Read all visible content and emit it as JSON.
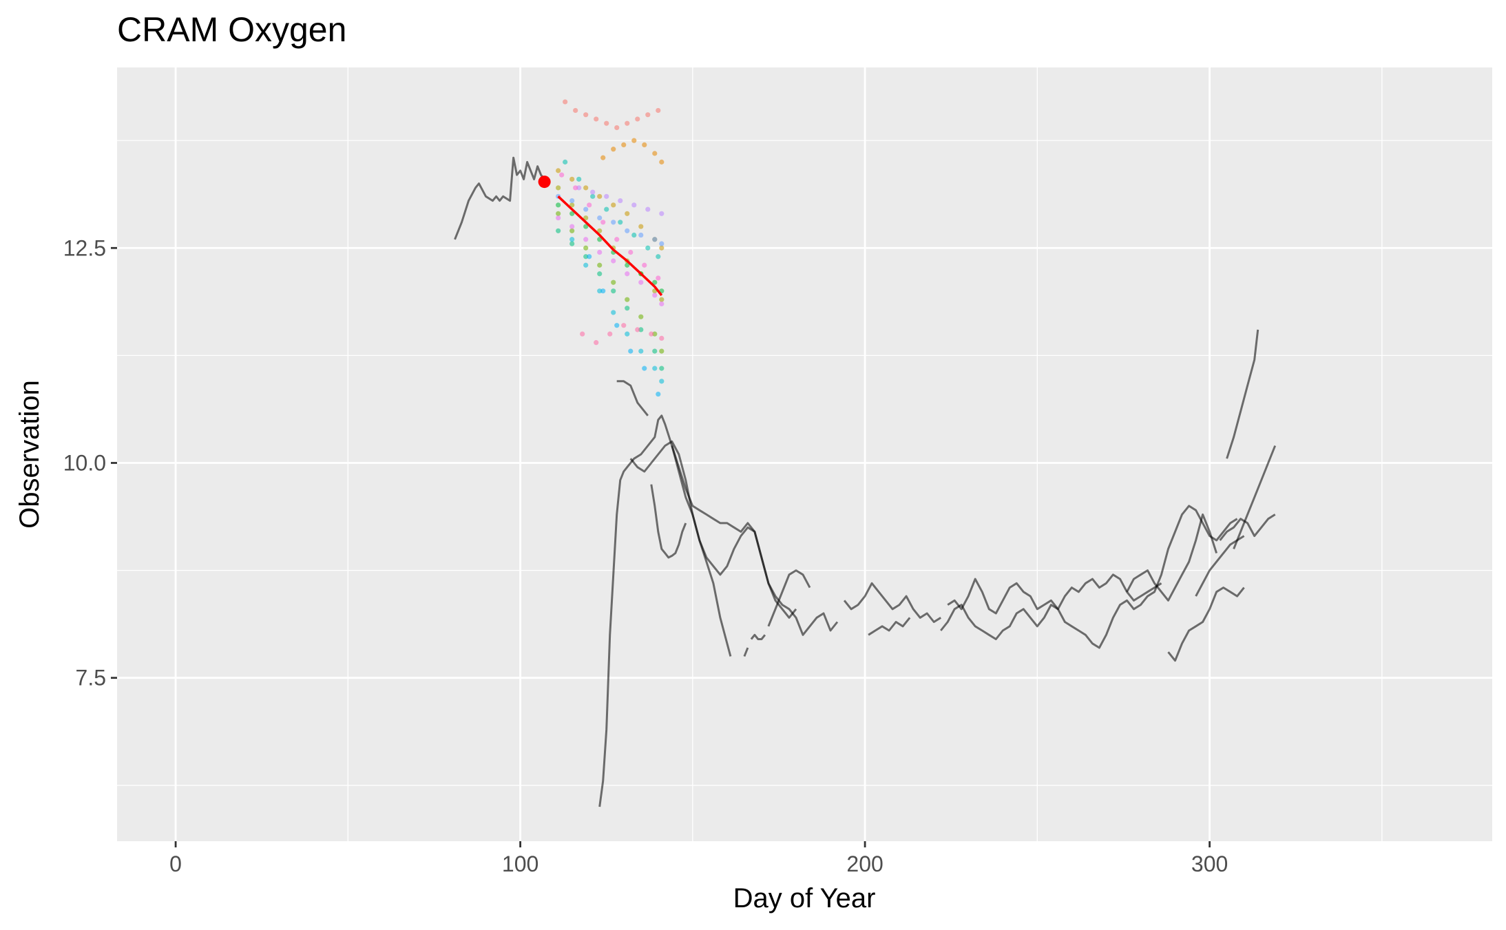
{
  "chart_data": {
    "type": "line",
    "title": "CRAM Oxygen",
    "xlabel": "Day of Year",
    "ylabel": "Observation",
    "xlim": [
      -17,
      382
    ],
    "ylim": [
      5.6,
      14.6
    ],
    "x_ticks": [
      0,
      100,
      200,
      300
    ],
    "y_ticks": [
      7.5,
      10.0,
      12.5
    ],
    "grid": true,
    "background": "#ebebeb",
    "grid_color": "#ffffff",
    "observation_color": "#000000",
    "forecast_mean_color": "#ff0000",
    "forecast_start_color": "#ff0000",
    "forecast_start": {
      "x": 107,
      "y": 13.27
    },
    "forecast_mean": {
      "x": [
        111,
        115,
        119,
        123,
        127,
        131,
        135,
        139,
        141
      ],
      "y": [
        13.1,
        12.95,
        12.8,
        12.65,
        12.48,
        12.35,
        12.2,
        12.05,
        11.95
      ]
    },
    "observed_series": [
      {
        "x": [
          81,
          83,
          85,
          87,
          88,
          90,
          92,
          93,
          94,
          95,
          97,
          98,
          99,
          100,
          101,
          102,
          103,
          104,
          105,
          106,
          107
        ],
        "y": [
          12.6,
          12.8,
          13.05,
          13.2,
          13.25,
          13.1,
          13.05,
          13.1,
          13.05,
          13.1,
          13.05,
          13.55,
          13.35,
          13.4,
          13.3,
          13.5,
          13.4,
          13.3,
          13.45,
          13.35,
          13.3
        ]
      },
      {
        "x": [
          128,
          130,
          132,
          134,
          136,
          137
        ],
        "y": [
          10.95,
          10.95,
          10.9,
          10.7,
          10.6,
          10.55
        ]
      },
      {
        "x": [
          123,
          124,
          125,
          126,
          128,
          129,
          130,
          131,
          133,
          135,
          137,
          139,
          140,
          141,
          142,
          144,
          146,
          148,
          150,
          152,
          154,
          156,
          158,
          160,
          162,
          164,
          166,
          168,
          170,
          172,
          174,
          176,
          178,
          180
        ],
        "y": [
          6.0,
          6.3,
          6.9,
          8.0,
          9.4,
          9.8,
          9.9,
          9.95,
          10.05,
          10.1,
          10.2,
          10.3,
          10.5,
          10.55,
          10.45,
          10.2,
          9.95,
          9.7,
          9.5,
          9.45,
          9.4,
          9.35,
          9.3,
          9.3,
          9.25,
          9.2,
          9.3,
          9.2,
          8.9,
          8.6,
          8.4,
          8.3,
          8.2,
          8.3
        ]
      },
      {
        "x": [
          132,
          134,
          136,
          138,
          140,
          142,
          144,
          146,
          148,
          150,
          152,
          154,
          156,
          158,
          160,
          162,
          164,
          166,
          168,
          170,
          172,
          174,
          176,
          178,
          180,
          182,
          184,
          186,
          188,
          190,
          192
        ],
        "y": [
          10.05,
          9.95,
          9.9,
          10.0,
          10.1,
          10.2,
          10.25,
          10.1,
          9.8,
          9.4,
          9.1,
          8.9,
          8.8,
          8.7,
          8.8,
          9.0,
          9.15,
          9.25,
          9.2,
          8.9,
          8.6,
          8.45,
          8.35,
          8.3,
          8.2,
          8.0,
          8.1,
          8.2,
          8.25,
          8.05,
          8.15
        ]
      },
      {
        "x": [
          138,
          139,
          140,
          141,
          142,
          143,
          144,
          145,
          146,
          147,
          148
        ],
        "y": [
          9.75,
          9.5,
          9.2,
          9.0,
          8.95,
          8.9,
          8.92,
          8.95,
          9.05,
          9.2,
          9.3
        ]
      },
      {
        "x": [
          144,
          146,
          148,
          150,
          152,
          154,
          156,
          157,
          158,
          160,
          161
        ],
        "y": [
          10.2,
          9.9,
          9.6,
          9.4,
          9.1,
          8.85,
          8.6,
          8.4,
          8.2,
          7.9,
          7.75
        ]
      },
      {
        "x": [
          165,
          166
        ],
        "y": [
          7.75,
          7.85
        ]
      },
      {
        "x": [
          167,
          168,
          169,
          170,
          171
        ],
        "y": [
          7.95,
          8.0,
          7.95,
          7.95,
          8.0
        ]
      },
      {
        "x": [
          172,
          174,
          176,
          178,
          180,
          182,
          184
        ],
        "y": [
          8.1,
          8.3,
          8.5,
          8.7,
          8.75,
          8.7,
          8.55
        ]
      },
      {
        "x": [
          194,
          196,
          198,
          200,
          202,
          204,
          206,
          208,
          210,
          212,
          214,
          216,
          218,
          220,
          222
        ],
        "y": [
          8.4,
          8.3,
          8.35,
          8.45,
          8.6,
          8.5,
          8.4,
          8.3,
          8.35,
          8.45,
          8.3,
          8.2,
          8.25,
          8.15,
          8.2
        ]
      },
      {
        "x": [
          201,
          203,
          205,
          207,
          209,
          211,
          213
        ],
        "y": [
          8.0,
          8.05,
          8.1,
          8.05,
          8.15,
          8.1,
          8.2
        ]
      },
      {
        "x": [
          224,
          226,
          228,
          230,
          232,
          234,
          236,
          238,
          240,
          242,
          244,
          246,
          248,
          250,
          252,
          254,
          256,
          258,
          260,
          262,
          264,
          266,
          268,
          270,
          272,
          274,
          276,
          278,
          280,
          282,
          284,
          286
        ],
        "y": [
          8.35,
          8.4,
          8.3,
          8.45,
          8.65,
          8.5,
          8.3,
          8.25,
          8.4,
          8.55,
          8.6,
          8.5,
          8.45,
          8.3,
          8.35,
          8.4,
          8.3,
          8.45,
          8.55,
          8.5,
          8.6,
          8.65,
          8.55,
          8.6,
          8.7,
          8.65,
          8.5,
          8.4,
          8.45,
          8.5,
          8.55,
          8.6
        ]
      },
      {
        "x": [
          222,
          224,
          226,
          228,
          230,
          232,
          234,
          236,
          238,
          240,
          242,
          244,
          246,
          248,
          250,
          252,
          254,
          256,
          258,
          260,
          262,
          264,
          266,
          268,
          270,
          272,
          274,
          276,
          278,
          280,
          282,
          284,
          286,
          288,
          290,
          292,
          294,
          296,
          298,
          300,
          302,
          304,
          306,
          308
        ],
        "y": [
          8.05,
          8.15,
          8.3,
          8.35,
          8.2,
          8.1,
          8.05,
          8.0,
          7.95,
          8.05,
          8.1,
          8.25,
          8.3,
          8.2,
          8.1,
          8.2,
          8.35,
          8.3,
          8.15,
          8.1,
          8.05,
          8.0,
          7.9,
          7.85,
          8.0,
          8.2,
          8.35,
          8.4,
          8.3,
          8.35,
          8.45,
          8.5,
          8.7,
          9.0,
          9.2,
          9.4,
          9.5,
          9.45,
          9.3,
          9.15,
          9.1,
          9.2,
          9.3,
          9.35
        ]
      },
      {
        "x": [
          276,
          278,
          280,
          282,
          284,
          286,
          288,
          290,
          292,
          294,
          296,
          298,
          300,
          302
        ],
        "y": [
          8.5,
          8.65,
          8.7,
          8.75,
          8.6,
          8.5,
          8.4,
          8.55,
          8.7,
          8.85,
          9.1,
          9.4,
          9.2,
          8.95
        ]
      },
      {
        "x": [
          288,
          290,
          292,
          294,
          296,
          298,
          300,
          302,
          304,
          306,
          308,
          310
        ],
        "y": [
          7.8,
          7.7,
          7.9,
          8.05,
          8.1,
          8.15,
          8.3,
          8.5,
          8.55,
          8.5,
          8.45,
          8.55
        ]
      },
      {
        "x": [
          303,
          305,
          307,
          309,
          311,
          313,
          315,
          317,
          319
        ],
        "y": [
          9.1,
          9.2,
          9.25,
          9.35,
          9.3,
          9.15,
          9.25,
          9.35,
          9.4
        ]
      },
      {
        "x": [
          305,
          307,
          309,
          311,
          313,
          314
        ],
        "y": [
          10.05,
          10.3,
          10.6,
          10.9,
          11.2,
          11.55
        ]
      },
      {
        "x": [
          307,
          309,
          311,
          313,
          315,
          317,
          319
        ],
        "y": [
          9.0,
          9.2,
          9.4,
          9.6,
          9.8,
          10.0,
          10.2
        ]
      },
      {
        "x": [
          296,
          298,
          300,
          302,
          304,
          306,
          308,
          310
        ],
        "y": [
          8.45,
          8.6,
          8.75,
          8.85,
          8.95,
          9.05,
          9.1,
          9.15
        ]
      }
    ],
    "ensemble_colors": [
      "#F8766D",
      "#E58700",
      "#C99800",
      "#A3A500",
      "#6BB100",
      "#00BA38",
      "#00BF7D",
      "#00C0AF",
      "#00BCD8",
      "#00B0F6",
      "#619CFF",
      "#B983FF",
      "#E76BF3",
      "#FD61D1",
      "#FF67A4"
    ],
    "ensemble": [
      {
        "x": [
          113,
          116,
          119,
          122,
          125,
          128,
          131,
          134,
          137,
          140
        ],
        "y": [
          14.2,
          14.1,
          14.05,
          14.0,
          13.95,
          13.9,
          13.95,
          14.0,
          14.05,
          14.1
        ]
      },
      {
        "x": [
          124,
          127,
          130,
          133,
          136,
          139,
          141
        ],
        "y": [
          13.55,
          13.65,
          13.7,
          13.75,
          13.7,
          13.6,
          13.5
        ]
      },
      {
        "x": [
          111,
          115,
          119,
          123,
          127,
          131,
          135,
          139,
          141
        ],
        "y": [
          13.4,
          13.3,
          13.2,
          13.1,
          13.0,
          12.9,
          12.75,
          12.6,
          12.5
        ]
      },
      {
        "x": [
          111,
          115,
          119,
          123,
          127,
          131,
          135,
          139,
          141
        ],
        "y": [
          13.2,
          13.0,
          12.85,
          12.7,
          12.5,
          12.35,
          12.2,
          12.0,
          11.9
        ]
      },
      {
        "x": [
          111,
          115,
          119,
          123,
          127,
          131,
          135,
          139,
          141
        ],
        "y": [
          12.9,
          12.7,
          12.5,
          12.3,
          12.1,
          11.9,
          11.7,
          11.5,
          11.3
        ]
      },
      {
        "x": [
          111,
          115,
          119,
          123,
          127,
          131,
          135,
          139,
          141
        ],
        "y": [
          13.0,
          12.9,
          12.75,
          12.6,
          12.45,
          12.3,
          12.2,
          12.1,
          12.0
        ]
      },
      {
        "x": [
          111,
          115,
          119,
          123,
          127,
          131,
          135,
          139,
          141
        ],
        "y": [
          12.7,
          12.55,
          12.4,
          12.2,
          12.0,
          11.8,
          11.55,
          11.3,
          11.1
        ]
      },
      {
        "x": [
          113,
          117,
          121,
          125,
          129,
          133,
          137,
          140
        ],
        "y": [
          13.5,
          13.3,
          13.1,
          12.95,
          12.8,
          12.65,
          12.5,
          12.4
        ]
      },
      {
        "x": [
          115,
          119,
          123,
          127,
          131,
          135,
          139,
          141
        ],
        "y": [
          12.6,
          12.3,
          12.0,
          11.75,
          11.5,
          11.3,
          11.1,
          10.95
        ]
      },
      {
        "x": [
          120,
          124,
          128,
          132,
          136,
          140
        ],
        "y": [
          12.4,
          12.0,
          11.6,
          11.3,
          11.1,
          10.8
        ]
      },
      {
        "x": [
          111,
          115,
          119,
          123,
          127,
          131,
          135,
          139,
          141
        ],
        "y": [
          13.1,
          13.05,
          12.95,
          12.85,
          12.8,
          12.7,
          12.65,
          12.6,
          12.55
        ]
      },
      {
        "x": [
          117,
          121,
          125,
          129,
          133,
          137,
          141
        ],
        "y": [
          13.2,
          13.15,
          13.1,
          13.05,
          13.0,
          12.95,
          12.9
        ]
      },
      {
        "x": [
          111,
          115,
          119,
          123,
          127,
          131,
          135,
          139,
          141
        ],
        "y": [
          12.85,
          12.75,
          12.6,
          12.45,
          12.35,
          12.2,
          12.1,
          11.95,
          11.85
        ]
      },
      {
        "x": [
          112,
          116,
          120,
          124,
          128,
          132,
          136,
          140
        ],
        "y": [
          13.35,
          13.2,
          13.0,
          12.8,
          12.6,
          12.45,
          12.3,
          12.15
        ]
      },
      {
        "x": [
          118,
          122,
          126,
          130,
          134,
          138,
          141
        ],
        "y": [
          11.5,
          11.4,
          11.5,
          11.6,
          11.55,
          11.5,
          11.45
        ]
      }
    ]
  }
}
